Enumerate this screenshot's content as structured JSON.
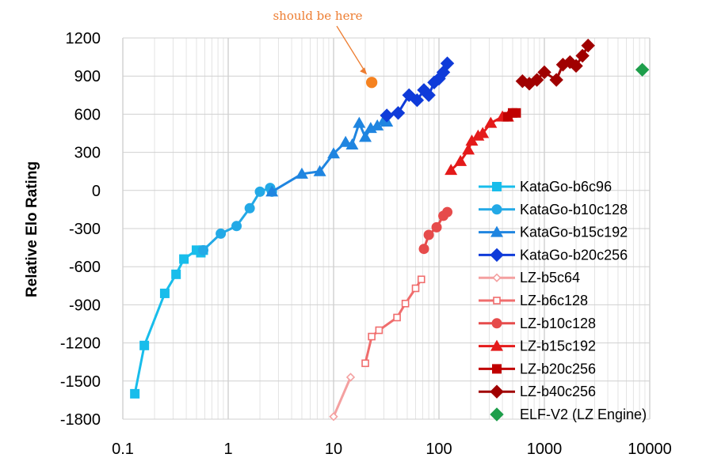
{
  "chart_data": {
    "type": "scatter",
    "title": "",
    "xlabel": "",
    "ylabel": "Relative Elo Rating",
    "x_scale": "log",
    "xlim": [
      0.1,
      10000
    ],
    "ylim": [
      -1800,
      1200
    ],
    "x_ticks": [
      "0.1",
      "1",
      "10",
      "100",
      "1000",
      "10000"
    ],
    "y_ticks": [
      "1200",
      "900",
      "600",
      "300",
      "0",
      "-300",
      "-600",
      "-900",
      "-1200",
      "-1500",
      "-1800"
    ],
    "grid": true,
    "legend_position": "right",
    "annotation": {
      "text": "should be here",
      "color": "#ED7D31",
      "point": {
        "x": 23,
        "y": 850
      }
    },
    "series": [
      {
        "name": "KataGo-b6c96",
        "color": "#18BDEB",
        "marker": "square",
        "line": true,
        "points": [
          [
            0.13,
            -1600
          ],
          [
            0.16,
            -1220
          ],
          [
            0.25,
            -810
          ],
          [
            0.32,
            -660
          ],
          [
            0.38,
            -540
          ],
          [
            0.5,
            -470
          ],
          [
            0.55,
            -490
          ],
          [
            0.58,
            -470
          ]
        ]
      },
      {
        "name": "KataGo-b10c128",
        "color": "#23A9E6",
        "marker": "circle",
        "line": true,
        "points": [
          [
            0.58,
            -470
          ],
          [
            0.85,
            -340
          ],
          [
            1.2,
            -280
          ],
          [
            1.6,
            -140
          ],
          [
            2.0,
            -10
          ],
          [
            2.5,
            20
          ],
          [
            2.6,
            -10
          ]
        ]
      },
      {
        "name": "KataGo-b15c192",
        "color": "#1F85E0",
        "marker": "triangle",
        "line": true,
        "points": [
          [
            2.6,
            -10
          ],
          [
            5.0,
            130
          ],
          [
            7.4,
            150
          ],
          [
            10.0,
            290
          ],
          [
            13.0,
            380
          ],
          [
            15.0,
            360
          ],
          [
            17.5,
            530
          ],
          [
            20.0,
            420
          ],
          [
            22.5,
            490
          ],
          [
            26.0,
            510
          ],
          [
            30.0,
            550
          ],
          [
            32.0,
            540
          ]
        ]
      },
      {
        "name": "KataGo-b20c256",
        "color": "#0F3BD9",
        "marker": "diamond",
        "line": true,
        "points": [
          [
            32.0,
            590
          ],
          [
            41.0,
            610
          ],
          [
            52.0,
            750
          ],
          [
            62.0,
            710
          ],
          [
            72.0,
            790
          ],
          [
            80.0,
            750
          ],
          [
            90.0,
            850
          ],
          [
            100.0,
            880
          ],
          [
            110.0,
            930
          ],
          [
            120.0,
            1000
          ]
        ]
      },
      {
        "name": "LZ-b5c64",
        "color": "#F4A0A0",
        "marker": "diamond-small",
        "line": true,
        "points": [
          [
            10.0,
            -1780
          ],
          [
            14.5,
            -1470
          ]
        ]
      },
      {
        "name": "LZ-b6c128",
        "color": "#F06D6D",
        "marker": "square-hollow",
        "line": true,
        "points": [
          [
            20.0,
            -1360
          ],
          [
            23.0,
            -1150
          ],
          [
            27.0,
            -1100
          ],
          [
            40.0,
            -1000
          ],
          [
            48.0,
            -890
          ],
          [
            60.0,
            -770
          ],
          [
            68.0,
            -700
          ]
        ]
      },
      {
        "name": "LZ-b10c128",
        "color": "#E64B4B",
        "marker": "circle",
        "line": true,
        "points": [
          [
            72.0,
            -460
          ],
          [
            80.0,
            -350
          ],
          [
            95.0,
            -290
          ],
          [
            110.0,
            -200
          ],
          [
            120.0,
            -170
          ]
        ]
      },
      {
        "name": "LZ-b15c192",
        "color": "#E41A1A",
        "marker": "triangle",
        "line": true,
        "points": [
          [
            130.0,
            160
          ],
          [
            160.0,
            230
          ],
          [
            190.0,
            320
          ],
          [
            205.0,
            390
          ],
          [
            235.0,
            430
          ],
          [
            260.0,
            450
          ],
          [
            310.0,
            530
          ],
          [
            400.0,
            580
          ],
          [
            450.0,
            580
          ]
        ]
      },
      {
        "name": "LZ-b20c256",
        "color": "#C00000",
        "marker": "square",
        "line": true,
        "points": [
          [
            450.0,
            580
          ],
          [
            500.0,
            610
          ],
          [
            540.0,
            610
          ]
        ]
      },
      {
        "name": "LZ-b40c256",
        "color": "#A00000",
        "marker": "diamond",
        "line": true,
        "points": [
          [
            620.0,
            860
          ],
          [
            720.0,
            840
          ],
          [
            850.0,
            870
          ],
          [
            1000.0,
            930
          ],
          [
            1300.0,
            870
          ],
          [
            1500.0,
            990
          ],
          [
            1750.0,
            1010
          ],
          [
            2000.0,
            980
          ],
          [
            2300.0,
            1060
          ],
          [
            2600.0,
            1140
          ]
        ]
      },
      {
        "name": "ELF-V2 (LZ Engine)",
        "color": "#1E9E4B",
        "marker": "diamond",
        "line": false,
        "points": [
          [
            8500.0,
            950
          ]
        ]
      }
    ],
    "extra_points": [
      {
        "color": "#F58220",
        "marker": "circle",
        "x": 23,
        "y": 850
      }
    ]
  }
}
